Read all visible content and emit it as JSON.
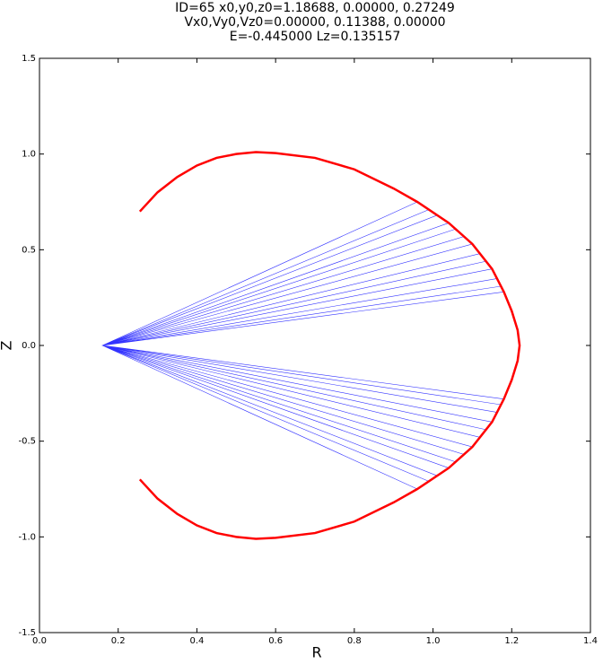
{
  "chart_data": {
    "type": "line",
    "title": "ID=65      x0,y0,z0=1.18688, 0.00000, 0.27249",
    "subtitle": "Vx0,Vy0,Vz0=0.00000, 0.11388, 0.00000",
    "annotation": "E=-0.445000    Lz=0.135157",
    "x_label": "R",
    "y_label": "Z",
    "xlim": [
      0,
      1.4
    ],
    "ylim": [
      -1.5,
      1.5
    ],
    "xticks": [
      {
        "value": 0,
        "label": "0.0"
      },
      0.2,
      0.4,
      0.6,
      0.8,
      {
        "value": 1,
        "label": "1.0"
      },
      1.2,
      1.4
    ],
    "yticks": [
      -1.5,
      {
        "value": -1,
        "label": "-1.0"
      },
      -0.5,
      {
        "value": 0,
        "label": "0.0"
      },
      0.5,
      {
        "value": 1,
        "label": "1.0"
      },
      1.5
    ],
    "series": [
      {
        "color": "#0000ff",
        "x": [
          1.18,
          0.16,
          1.18,
          0.16,
          1.175,
          0.16,
          1.175,
          0.16,
          1.165,
          0.16,
          1.165,
          0.16,
          1.15,
          0.16,
          1.15,
          0.16,
          1.135,
          0.16,
          1.135,
          0.16,
          1.12,
          0.16,
          1.12,
          0.16,
          1.1,
          0.16,
          1.1,
          0.16,
          1.08,
          0.16,
          1.08,
          0.16,
          1.06,
          0.16,
          1.06,
          0.16,
          1.04,
          0.16,
          1.04,
          0.16,
          1.01,
          0.16,
          1.01,
          0.16,
          0.99,
          0.16,
          0.99,
          0.16,
          0.96,
          0.16,
          0.96,
          0.16
        ],
        "values": [
          0.28,
          0,
          -0.28,
          0,
          0.31,
          0,
          -0.31,
          0,
          0.35,
          0,
          -0.35,
          0,
          0.4,
          0,
          -0.4,
          0,
          0.44,
          0,
          -0.44,
          0,
          0.48,
          0,
          -0.48,
          0,
          0.53,
          0,
          -0.53,
          0,
          0.57,
          0,
          -0.57,
          0,
          0.61,
          0,
          -0.61,
          0,
          0.64,
          0,
          -0.64,
          0,
          0.68,
          0,
          -0.68,
          0,
          0.71,
          0,
          -0.71,
          0,
          0.75,
          0,
          -0.75,
          0
        ]
      },
      {
        "color": "#ff0000",
        "x": [
          0.255,
          0.3,
          0.35,
          0.4,
          0.45,
          0.5,
          0.55,
          0.6,
          0.7,
          0.8,
          0.9,
          0.96,
          1.04,
          1.1,
          1.15,
          1.18,
          1.2,
          1.215,
          1.22,
          1.215,
          1.2,
          1.18,
          1.15,
          1.1,
          1.04,
          0.96,
          0.9,
          0.8,
          0.7,
          0.6,
          0.55,
          0.5,
          0.45,
          0.4,
          0.35,
          0.3,
          0.255
        ],
        "values": [
          0.7,
          0.8,
          0.88,
          0.94,
          0.98,
          1.0,
          1.01,
          1.005,
          0.98,
          0.92,
          0.82,
          0.75,
          0.64,
          0.53,
          0.4,
          0.28,
          0.18,
          0.08,
          0,
          -0.08,
          -0.18,
          -0.28,
          -0.4,
          -0.53,
          -0.64,
          -0.75,
          -0.82,
          -0.92,
          -0.98,
          -1.005,
          -1.01,
          -1.0,
          -0.98,
          -0.94,
          -0.88,
          -0.8,
          -0.7
        ]
      }
    ]
  }
}
